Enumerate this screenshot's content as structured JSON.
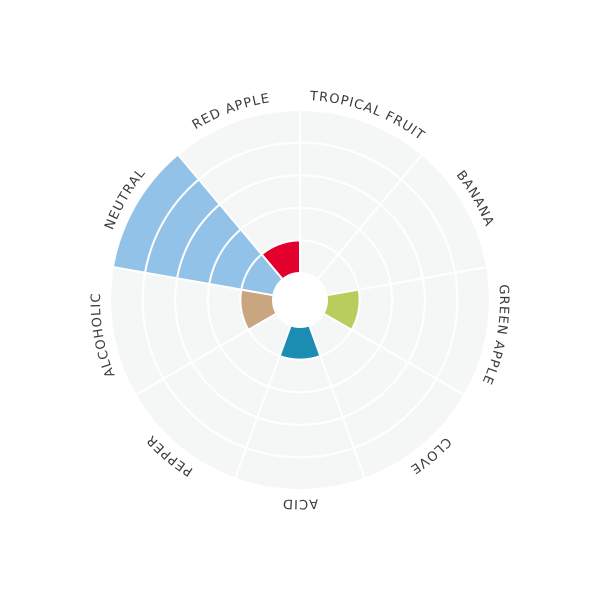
{
  "chart_data": {
    "type": "polar-area",
    "categories": [
      "TROPICAL FRUIT",
      "BANANA",
      "GREEN APPLE",
      "CLOVE",
      "ACID",
      "PEPPER",
      "ALCOHOLIC",
      "NEUTRAL",
      "RED APPLE"
    ],
    "values": [
      0,
      0,
      1,
      0,
      1,
      0,
      1,
      5,
      1
    ],
    "colors": [
      "#f08c2e",
      "#f3d23a",
      "#b7cd5c",
      "#8a5a9c",
      "#1b8db2",
      "#7a7a7a",
      "#c9a67f",
      "#93c2e8",
      "#e3002c"
    ],
    "rlim": [
      0,
      5
    ],
    "rticks": [
      0,
      1,
      2,
      3,
      4,
      5
    ],
    "grid": true
  }
}
